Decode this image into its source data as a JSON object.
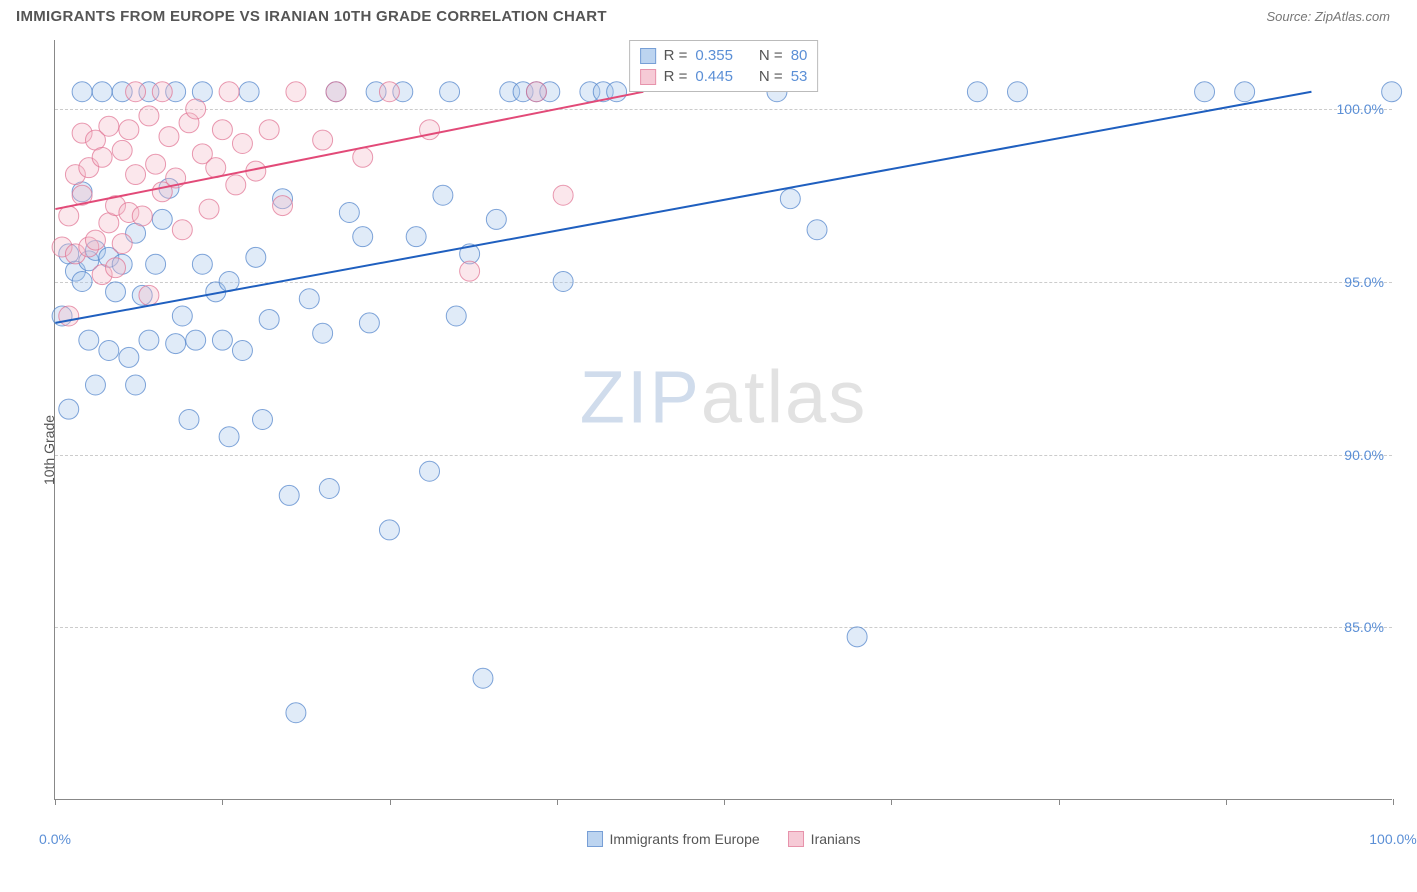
{
  "header": {
    "title": "IMMIGRANTS FROM EUROPE VS IRANIAN 10TH GRADE CORRELATION CHART",
    "source": "Source: ZipAtlas.com"
  },
  "chart": {
    "type": "scatter",
    "y_axis_label": "10th Grade",
    "background_color": "#ffffff",
    "grid_color": "#cccccc",
    "axis_color": "#888888",
    "xlim": [
      0,
      100
    ],
    "ylim": [
      80,
      102
    ],
    "y_ticks": [
      {
        "v": 85.0,
        "label": "85.0%"
      },
      {
        "v": 90.0,
        "label": "90.0%"
      },
      {
        "v": 95.0,
        "label": "95.0%"
      },
      {
        "v": 100.0,
        "label": "100.0%"
      }
    ],
    "x_ticks": [
      0,
      12.5,
      25,
      37.5,
      50,
      62.5,
      75,
      87.5,
      100
    ],
    "x_tick_labels": {
      "0": "0.0%",
      "100": "100.0%"
    },
    "marker_radius": 10,
    "marker_opacity": 0.35,
    "marker_stroke_opacity": 0.7,
    "series": [
      {
        "name": "Immigrants from Europe",
        "color_fill": "#a6c6ec",
        "color_stroke": "#4a7fc9",
        "reg_line": {
          "x1": 0,
          "y1": 93.8,
          "x2": 94,
          "y2": 100.5,
          "color": "#1f5fbf",
          "width": 2
        },
        "stats": {
          "r": "0.355",
          "n": "80"
        },
        "points": [
          [
            0.5,
            94.0
          ],
          [
            1,
            95.8
          ],
          [
            1,
            91.3
          ],
          [
            1.5,
            95.3
          ],
          [
            2,
            97.6
          ],
          [
            2,
            95.0
          ],
          [
            2,
            100.5
          ],
          [
            2.5,
            95.6
          ],
          [
            2.5,
            93.3
          ],
          [
            3,
            95.9
          ],
          [
            3,
            92.0
          ],
          [
            3.5,
            100.5
          ],
          [
            4,
            95.7
          ],
          [
            4,
            93.0
          ],
          [
            4.5,
            94.7
          ],
          [
            5,
            95.5
          ],
          [
            5,
            100.5
          ],
          [
            5.5,
            92.8
          ],
          [
            6,
            92.0
          ],
          [
            6,
            96.4
          ],
          [
            6.5,
            94.6
          ],
          [
            7,
            93.3
          ],
          [
            7,
            100.5
          ],
          [
            7.5,
            95.5
          ],
          [
            8,
            96.8
          ],
          [
            8.5,
            97.7
          ],
          [
            9,
            93.2
          ],
          [
            9,
            100.5
          ],
          [
            9.5,
            94.0
          ],
          [
            10,
            91.0
          ],
          [
            10.5,
            93.3
          ],
          [
            11,
            95.5
          ],
          [
            11,
            100.5
          ],
          [
            12,
            94.7
          ],
          [
            12.5,
            93.3
          ],
          [
            13,
            90.5
          ],
          [
            13,
            95.0
          ],
          [
            14,
            93.0
          ],
          [
            14.5,
            100.5
          ],
          [
            15,
            95.7
          ],
          [
            15.5,
            91.0
          ],
          [
            16,
            93.9
          ],
          [
            17,
            97.4
          ],
          [
            17.5,
            88.8
          ],
          [
            18,
            82.5
          ],
          [
            19,
            94.5
          ],
          [
            20,
            93.5
          ],
          [
            20.5,
            89.0
          ],
          [
            21,
            100.5
          ],
          [
            22,
            97.0
          ],
          [
            23,
            96.3
          ],
          [
            23.5,
            93.8
          ],
          [
            24,
            100.5
          ],
          [
            25,
            87.8
          ],
          [
            26,
            100.5
          ],
          [
            27,
            96.3
          ],
          [
            28,
            89.5
          ],
          [
            29,
            97.5
          ],
          [
            29.5,
            100.5
          ],
          [
            30,
            94.0
          ],
          [
            31,
            95.8
          ],
          [
            32,
            83.5
          ],
          [
            33,
            96.8
          ],
          [
            34,
            100.5
          ],
          [
            35,
            100.5
          ],
          [
            36,
            100.5
          ],
          [
            37,
            100.5
          ],
          [
            38,
            95.0
          ],
          [
            40,
            100.5
          ],
          [
            41,
            100.5
          ],
          [
            42,
            100.5
          ],
          [
            54,
            100.5
          ],
          [
            55,
            97.4
          ],
          [
            57,
            96.5
          ],
          [
            60,
            84.7
          ],
          [
            69,
            100.5
          ],
          [
            72,
            100.5
          ],
          [
            86,
            100.5
          ],
          [
            89,
            100.5
          ],
          [
            100,
            100.5
          ]
        ]
      },
      {
        "name": "Iranians",
        "color_fill": "#f4b9c9",
        "color_stroke": "#e06f90",
        "reg_line": {
          "x1": 0,
          "y1": 97.1,
          "x2": 44,
          "y2": 100.5,
          "color": "#e24a78",
          "width": 2
        },
        "stats": {
          "r": "0.445",
          "n": "53"
        },
        "points": [
          [
            0.5,
            96.0
          ],
          [
            1,
            96.9
          ],
          [
            1,
            94.0
          ],
          [
            1.5,
            98.1
          ],
          [
            1.5,
            95.8
          ],
          [
            2,
            97.5
          ],
          [
            2,
            99.3
          ],
          [
            2.5,
            96.0
          ],
          [
            2.5,
            98.3
          ],
          [
            3,
            96.2
          ],
          [
            3,
            99.1
          ],
          [
            3.5,
            95.2
          ],
          [
            3.5,
            98.6
          ],
          [
            4,
            96.7
          ],
          [
            4,
            99.5
          ],
          [
            4.5,
            97.2
          ],
          [
            4.5,
            95.4
          ],
          [
            5,
            98.8
          ],
          [
            5,
            96.1
          ],
          [
            5.5,
            99.4
          ],
          [
            5.5,
            97.0
          ],
          [
            6,
            98.1
          ],
          [
            6,
            100.5
          ],
          [
            6.5,
            96.9
          ],
          [
            7,
            99.8
          ],
          [
            7,
            94.6
          ],
          [
            7.5,
            98.4
          ],
          [
            8,
            97.6
          ],
          [
            8,
            100.5
          ],
          [
            8.5,
            99.2
          ],
          [
            9,
            98.0
          ],
          [
            9.5,
            96.5
          ],
          [
            10,
            99.6
          ],
          [
            10.5,
            100.0
          ],
          [
            11,
            98.7
          ],
          [
            11.5,
            97.1
          ],
          [
            12,
            98.3
          ],
          [
            12.5,
            99.4
          ],
          [
            13,
            100.5
          ],
          [
            13.5,
            97.8
          ],
          [
            14,
            99.0
          ],
          [
            15,
            98.2
          ],
          [
            16,
            99.4
          ],
          [
            17,
            97.2
          ],
          [
            18,
            100.5
          ],
          [
            20,
            99.1
          ],
          [
            21,
            100.5
          ],
          [
            23,
            98.6
          ],
          [
            25,
            100.5
          ],
          [
            28,
            99.4
          ],
          [
            31,
            95.3
          ],
          [
            36,
            100.5
          ],
          [
            38,
            97.5
          ]
        ]
      }
    ],
    "watermark": {
      "zip": "ZIP",
      "atlas": "atlas"
    },
    "bottom_legend": [
      {
        "label": "Immigrants from Europe",
        "fill": "#a6c6ec",
        "stroke": "#4a7fc9"
      },
      {
        "label": "Iranians",
        "fill": "#f4b9c9",
        "stroke": "#e06f90"
      }
    ],
    "stats_labels": {
      "r": "R  =",
      "n": "N  ="
    }
  }
}
